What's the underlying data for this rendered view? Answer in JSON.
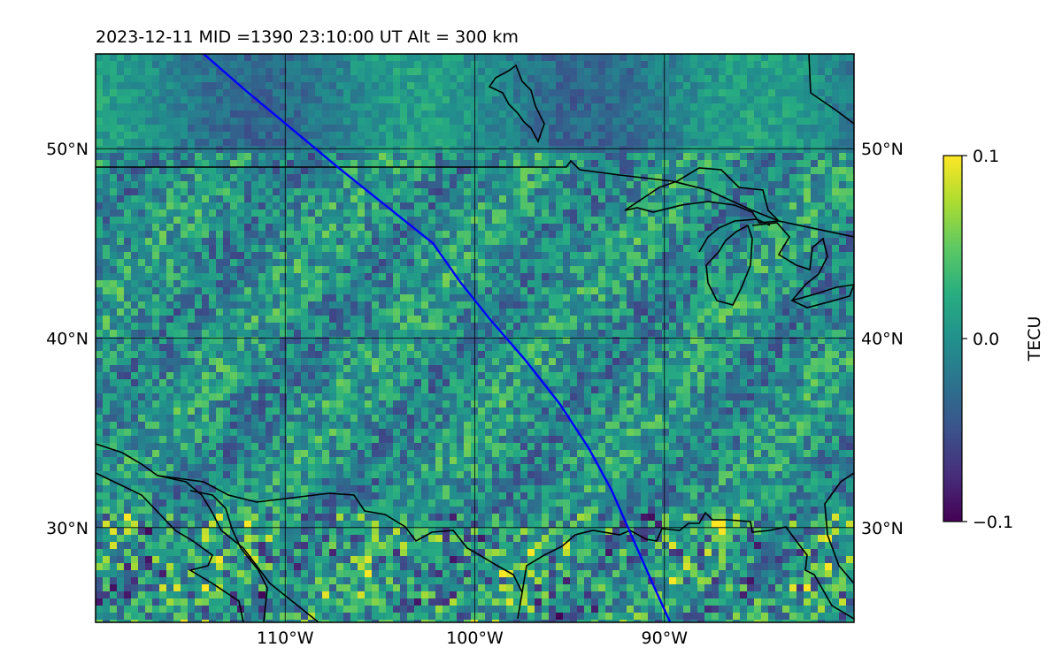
{
  "title": "2023-12-11  MID =1390    23:10:00  UT  Alt = 300 km",
  "colormap": "viridis",
  "colors": {
    "track": "#0000ff",
    "coastline": "#000000",
    "grid": "#000000"
  },
  "map": {
    "lon_range": [
      -120,
      -80
    ],
    "lat_range": [
      25,
      55
    ],
    "lon_ticks": [
      {
        "value": -110,
        "label": "110°W"
      },
      {
        "value": -100,
        "label": "100°W"
      },
      {
        "value": -90,
        "label": "90°W"
      }
    ],
    "lat_ticks": [
      {
        "value": 50,
        "label": "50°N"
      },
      {
        "value": 40,
        "label": "40°N"
      },
      {
        "value": 30,
        "label": "30°N"
      }
    ],
    "gridlines": true,
    "track": [
      [
        -114.3,
        55.0
      ],
      [
        -112.0,
        53.0
      ],
      [
        -109.6,
        51.0
      ],
      [
        -107.2,
        49.0
      ],
      [
        -104.7,
        47.0
      ],
      [
        -102.2,
        45.0
      ],
      [
        -100.8,
        43.0
      ],
      [
        -99.2,
        41.0
      ],
      [
        -97.3,
        38.8
      ],
      [
        -95.5,
        36.5
      ],
      [
        -94.0,
        34.2
      ],
      [
        -92.8,
        32.0
      ],
      [
        -91.7,
        29.5
      ],
      [
        -90.6,
        27.0
      ],
      [
        -89.7,
        25.0
      ]
    ]
  },
  "colorbar": {
    "label": "TECU",
    "range": [
      -0.1,
      0.1
    ],
    "ticks": [
      {
        "value": 0.1,
        "label": "0.1"
      },
      {
        "value": 0.0,
        "label": "0.0"
      },
      {
        "value": -0.1,
        "label": "−0.1"
      }
    ]
  }
}
